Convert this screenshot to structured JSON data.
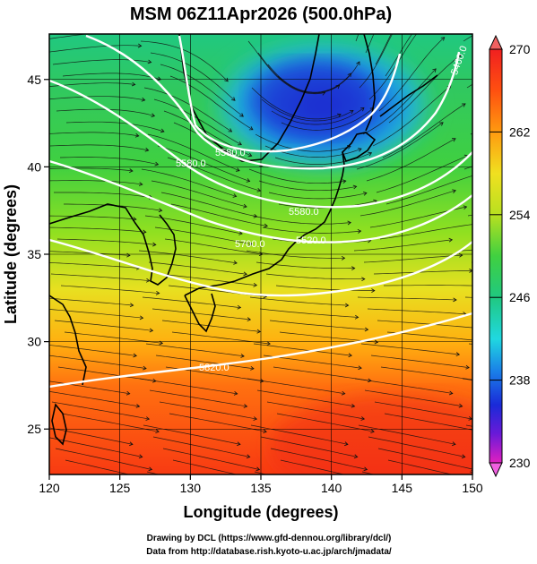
{
  "title": "MSM 06Z11Apr2026 (500.0hPa)",
  "axes": {
    "xlabel": "Longitude (degrees)",
    "ylabel": "Latitude  (degrees)",
    "x_ticks": [
      "120",
      "125",
      "130",
      "135",
      "140",
      "145",
      "150"
    ],
    "y_ticks": [
      "25",
      "30",
      "35",
      "40",
      "45"
    ],
    "x_range": [
      120,
      150
    ],
    "y_range": [
      22.4,
      47.6
    ]
  },
  "colorbar": {
    "ticks": [
      "270",
      "262",
      "254",
      "246",
      "238",
      "230"
    ],
    "range": [
      230,
      270
    ],
    "colors": [
      "#e020c0",
      "#6a1ad8",
      "#1a2ad8",
      "#1a7ee8",
      "#20d8e0",
      "#20c880",
      "#40d040",
      "#b8e020",
      "#f0e020",
      "#ff9a10",
      "#ff4a10",
      "#f02020"
    ]
  },
  "contours": [
    {
      "label": "5820.0",
      "value": 5820
    },
    {
      "label": "5700.0",
      "value": 5700
    },
    {
      "label": "5580.0",
      "value": 5580
    },
    {
      "label": "5580.0",
      "value": 5580
    },
    {
      "label": "5580.0",
      "value": 5580
    },
    {
      "label": "5520.0",
      "value": 5520
    },
    {
      "label": "5460.0",
      "value": 5460
    }
  ],
  "credits": {
    "line1": "Drawing by DCL (https://www.gfd-dennou.org/library/dcl/)",
    "line2": "Data from http://database.rish.kyoto-u.ac.jp/arch/jmadata/"
  }
}
